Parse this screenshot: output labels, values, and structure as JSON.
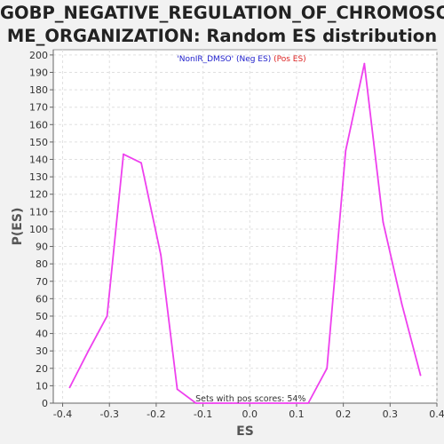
{
  "chart_data": {
    "type": "line",
    "title_line1": "GOBP_NEGATIVE_REGULATION_OF_CHROMOSO",
    "title_line2": "ME_ORGANIZATION: Random ES distribution",
    "xlabel": "ES",
    "ylabel": "P(ES)",
    "xlim": [
      -0.42,
      0.4
    ],
    "ylim": [
      0,
      203
    ],
    "x_ticks": [
      -0.4,
      -0.3,
      -0.2,
      -0.1,
      0.0,
      0.1,
      0.2,
      0.3,
      0.4
    ],
    "x_tick_labels": [
      "-0.4",
      "-0.3",
      "-0.2",
      "-0.1",
      "0.0",
      "0.1",
      "0.2",
      "0.3",
      "0.4"
    ],
    "y_ticks": [
      0,
      10,
      20,
      30,
      40,
      50,
      60,
      70,
      80,
      90,
      100,
      110,
      120,
      130,
      140,
      150,
      160,
      170,
      180,
      190,
      200
    ],
    "grid": true,
    "legend": {
      "placement": "top",
      "parts": [
        {
          "text": "'NonIR_DMSO'",
          "color": "#2020cc"
        },
        {
          "text": "(Neg ES)",
          "color": "#2020cc"
        },
        {
          "text": "(Pos ES)",
          "color": "#dd2222"
        }
      ]
    },
    "annotation": "Sets with pos scores: 54%",
    "series": [
      {
        "color": "#ee40ee",
        "x": [
          -0.385,
          -0.345,
          -0.305,
          -0.27,
          -0.232,
          -0.19,
          -0.155,
          -0.115,
          -0.08,
          -0.04,
          0.0,
          0.04,
          0.08,
          0.125,
          0.165,
          0.205,
          0.245,
          0.285,
          0.325,
          0.365
        ],
        "y": [
          9,
          30,
          50,
          143,
          138,
          85,
          8,
          0,
          0,
          0,
          0,
          0,
          0,
          0,
          20,
          145,
          195,
          104,
          57,
          16
        ]
      }
    ]
  }
}
